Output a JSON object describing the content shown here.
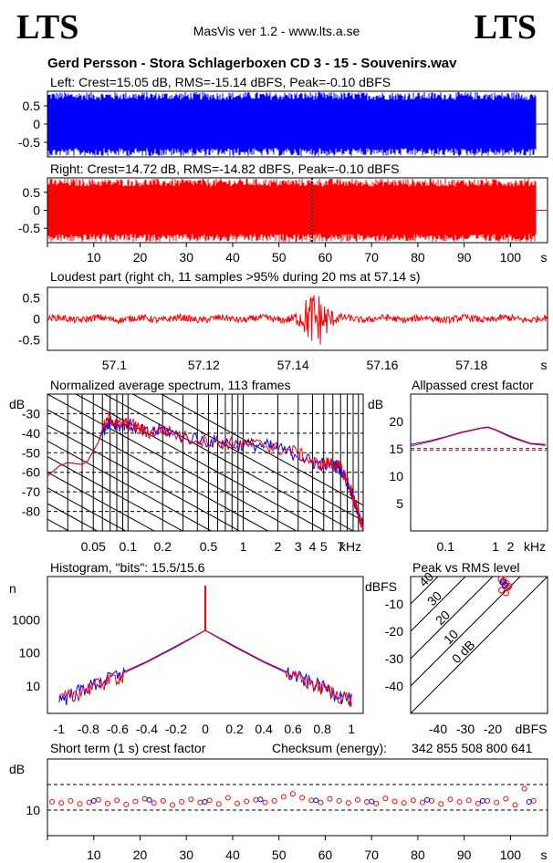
{
  "header": {
    "logo_left": "LTS",
    "logo_right": "LTS",
    "app_title": "MasVis ver 1.2 - www.lts.a.se",
    "file_title": "Gerd Persson - Stora Schlagerboxen CD 3 - 15 - Souvenirs.wav"
  },
  "checksum": {
    "label": "Checksum (energy):",
    "value": "342 855 508 800 641"
  },
  "colors": {
    "left": "#0000ff",
    "right": "#ff0000",
    "black": "#000000"
  },
  "chart_data": [
    {
      "type": "area",
      "id": "left_waveform",
      "title": "Left: Crest=15.05 dB, RMS=-15.14 dBFS, Peak=-0.10 dBFS",
      "crest_db": 15.05,
      "rms_dbfs": -15.14,
      "peak_dbfs": -0.1,
      "ylim": [
        -0.9,
        0.9
      ],
      "yticks": [
        "0.5",
        "0",
        "-0.5"
      ],
      "xlim": [
        0,
        108
      ],
      "signal_end_s": 105.5,
      "envelope_amplitude": 0.88
    },
    {
      "type": "area",
      "id": "right_waveform",
      "title": "Right: Crest=14.72 dB, RMS=-14.82 dBFS, Peak=-0.10 dBFS",
      "crest_db": 14.72,
      "rms_dbfs": -14.82,
      "peak_dbfs": -0.1,
      "ylim": [
        -0.9,
        0.9
      ],
      "yticks": [
        "0.5",
        "0",
        "-0.5"
      ],
      "xlim": [
        0,
        108
      ],
      "xticks": [
        "10",
        "20",
        "30",
        "40",
        "50",
        "60",
        "70",
        "80",
        "90",
        "100"
      ],
      "xunit": "s",
      "marker_s": 57.14,
      "signal_end_s": 105.5,
      "envelope_amplitude": 0.88
    },
    {
      "type": "line",
      "id": "loudest_part",
      "title": "Loudest part (right ch, 11 samples >95% during 20 ms at 57.14 s)",
      "xlim": [
        57.085,
        57.197
      ],
      "ylim": [
        -0.75,
        0.75
      ],
      "yticks": [
        "0.5",
        "0",
        "-0.5"
      ],
      "xticks": [
        "57.1",
        "57.12",
        "57.14",
        "57.16",
        "57.18"
      ],
      "xunit": "s",
      "peak_at_s": 57.145
    },
    {
      "type": "line",
      "id": "spectrum",
      "title": "Normalized average spectrum, 113 frames",
      "ylabel": "dB",
      "yticks": [
        "-30",
        "-40",
        "-50",
        "-60",
        "-70",
        "-80"
      ],
      "ylim": [
        -90,
        -20
      ],
      "xscale": "log",
      "xticks": [
        "0.05",
        "0.1",
        "0.2",
        "0.5",
        "1",
        "2",
        "3",
        "4",
        "5",
        "7"
      ],
      "xunit": "kHz",
      "xlim_khz": [
        0.02,
        11
      ],
      "series": [
        {
          "color": "#ff0000",
          "x_khz": [
            0.02,
            0.025,
            0.03,
            0.04,
            0.045,
            0.05,
            0.055,
            0.06,
            0.07,
            0.08,
            0.1,
            0.12,
            0.15,
            0.2,
            0.3,
            0.5,
            0.7,
            1,
            1.5,
            2,
            3,
            4,
            5,
            6,
            7,
            8,
            9,
            10,
            11
          ],
          "y_db": [
            -62,
            -57,
            -55,
            -56,
            -54,
            -49,
            -45,
            -38,
            -32,
            -36,
            -35,
            -37,
            -40,
            -38,
            -42,
            -44,
            -45,
            -46,
            -46,
            -48,
            -50,
            -55,
            -56,
            -55,
            -58,
            -64,
            -72,
            -82,
            -88
          ]
        },
        {
          "color": "#0000ff",
          "x_khz": [
            0.02,
            0.025,
            0.03,
            0.04,
            0.045,
            0.05,
            0.055,
            0.06,
            0.07,
            0.08,
            0.1,
            0.12,
            0.15,
            0.2,
            0.3,
            0.5,
            0.7,
            1,
            1.5,
            2,
            3,
            4,
            5,
            6,
            7,
            8,
            9,
            10,
            11
          ],
          "y_db": [
            -62,
            -57,
            -55,
            -56,
            -54,
            -49,
            -45,
            -39,
            -33,
            -36,
            -35,
            -38,
            -40,
            -38,
            -42,
            -44,
            -45,
            -46,
            -46,
            -48,
            -51,
            -55,
            -56,
            -56,
            -58,
            -65,
            -72,
            -82,
            -88
          ]
        }
      ]
    },
    {
      "type": "line",
      "id": "allpassed_crest",
      "title": "Allpassed crest factor",
      "ylabel": "dB",
      "yticks": [
        "20",
        "15",
        "10",
        "5"
      ],
      "ylim": [
        0,
        25
      ],
      "xscale": "log",
      "xticks": [
        "0.1",
        "1",
        "2"
      ],
      "xunit": "kHz",
      "reference_lines_db": [
        15.05,
        14.72
      ],
      "series": [
        {
          "color": "#0000ff",
          "x_khz": [
            0.02,
            0.05,
            0.1,
            0.2,
            0.5,
            0.7,
            1,
            2,
            5,
            10
          ],
          "y_db": [
            15.8,
            16.5,
            17.2,
            18.0,
            18.8,
            19.0,
            18.5,
            17.3,
            16.0,
            15.8
          ]
        },
        {
          "color": "#ff0000",
          "x_khz": [
            0.02,
            0.05,
            0.1,
            0.2,
            0.5,
            0.7,
            1,
            2,
            5,
            10
          ],
          "y_db": [
            15.5,
            16.3,
            17.1,
            17.9,
            18.7,
            18.9,
            18.4,
            17.1,
            15.9,
            15.6
          ]
        }
      ]
    },
    {
      "type": "line",
      "id": "histogram",
      "title": "Histogram, \"bits\": 15.5/15.6",
      "ylabel": "n",
      "yscale": "log",
      "yticks": [
        "1000",
        "100",
        "10"
      ],
      "xticks": [
        "-1",
        "-0.8",
        "-0.6",
        "-0.4",
        "-0.2",
        "0",
        "0.2",
        "0.4",
        "0.6",
        "0.8",
        "1"
      ],
      "xlim": [
        -1.08,
        1.08
      ],
      "series": [
        {
          "color": "#0000ff",
          "x": [
            -1,
            -0.8,
            -0.6,
            -0.4,
            -0.2,
            0,
            0.2,
            0.4,
            0.6,
            0.8,
            1
          ],
          "y": [
            4,
            10,
            22,
            55,
            160,
            480,
            160,
            55,
            22,
            10,
            4
          ]
        },
        {
          "color": "#ff0000",
          "x": [
            -1,
            -0.8,
            -0.6,
            -0.4,
            -0.2,
            0,
            0.2,
            0.4,
            0.6,
            0.8,
            1
          ],
          "y": [
            4,
            9,
            20,
            52,
            150,
            470,
            150,
            52,
            20,
            9,
            4
          ]
        }
      ]
    },
    {
      "type": "scatter",
      "id": "peak_vs_rms",
      "title": "Peak vs RMS level",
      "ylabel": "dBFS",
      "xlabel": "dBFS",
      "yticks": [
        "-10",
        "-20",
        "-30",
        "-40"
      ],
      "xticks": [
        "-40",
        "-30",
        "-20"
      ],
      "xlim": [
        -50,
        0
      ],
      "ylim": [
        -50,
        0
      ],
      "diagonal_labels": [
        "40",
        "30",
        "20",
        "10",
        "0 dB"
      ],
      "series": [
        {
          "color": "#ff0000",
          "x": [
            -17,
            -16.5,
            -16,
            -15.5,
            -15,
            -14.5,
            -14,
            -16.8,
            -15.2
          ],
          "y": [
            -1,
            -2,
            -1.5,
            -3,
            -2.5,
            -4,
            -3.5,
            -5,
            -6
          ]
        },
        {
          "color": "#0000ff",
          "x": [
            -16.2,
            -15.6
          ],
          "y": [
            -2,
            -3.2
          ]
        }
      ]
    },
    {
      "type": "scatter",
      "id": "short_term_crest",
      "title": "Short term (1 s) crest factor",
      "ylabel": "dB",
      "yticks": [
        "10"
      ],
      "ylim": [
        5,
        20
      ],
      "reference_lines_db": [
        15,
        10
      ],
      "xlim": [
        0,
        108
      ],
      "xticks": [
        "10",
        "20",
        "30",
        "40",
        "50",
        "60",
        "70",
        "80",
        "90",
        "100"
      ],
      "xunit": "s",
      "series": [
        {
          "color": "#ff0000",
          "x": [
            1,
            3,
            5,
            7,
            9,
            11,
            13,
            15,
            17,
            19,
            21,
            23,
            25,
            27,
            29,
            31,
            33,
            35,
            37,
            39,
            41,
            43,
            45,
            47,
            49,
            51,
            53,
            55,
            57,
            59,
            61,
            63,
            65,
            67,
            69,
            71,
            73,
            75,
            77,
            79,
            81,
            83,
            85,
            87,
            89,
            91,
            93,
            95,
            97,
            99,
            101,
            103,
            105
          ],
          "y": [
            11.6,
            11.4,
            11.8,
            11.2,
            11.5,
            12.0,
            11.3,
            11.9,
            11.1,
            11.7,
            12.2,
            11.4,
            11.8,
            11.0,
            11.6,
            12.1,
            11.5,
            11.9,
            11.2,
            12.4,
            11.3,
            11.7,
            12.0,
            11.5,
            11.8,
            12.6,
            13.2,
            12.4,
            11.9,
            11.5,
            12.2,
            11.8,
            11.4,
            12.0,
            11.6,
            11.3,
            12.3,
            11.7,
            11.4,
            11.9,
            11.5,
            11.8,
            11.2,
            12.1,
            11.6,
            11.9,
            11.3,
            11.8,
            11.5,
            12.2,
            11.0,
            14.2,
            11.8
          ]
        },
        {
          "color": "#0000ff",
          "x": [
            10,
            22,
            34,
            46,
            58,
            70,
            82,
            94,
            104
          ],
          "y": [
            11.8,
            12.0,
            11.6,
            12.1,
            11.9,
            11.7,
            12.0,
            11.8,
            11.6
          ]
        }
      ]
    }
  ]
}
